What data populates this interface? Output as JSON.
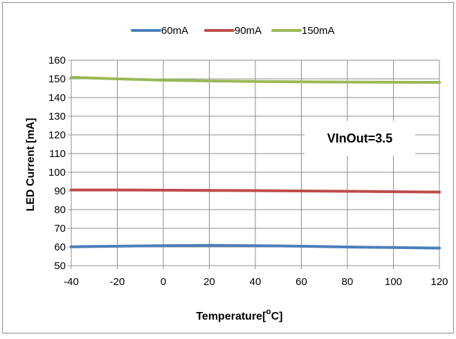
{
  "chart_data": {
    "type": "line",
    "xlabel_main": "Temperature[",
    "xlabel_sup": "o",
    "xlabel_end": "C]",
    "ylabel": "LED Current [mA]",
    "annotation": "VInOut=3.5",
    "xlim": [
      -40,
      120
    ],
    "ylim": [
      50,
      160
    ],
    "x_ticks": [
      -40,
      -20,
      0,
      20,
      40,
      60,
      80,
      100,
      120
    ],
    "y_ticks": [
      50,
      60,
      70,
      80,
      90,
      100,
      110,
      120,
      130,
      140,
      150,
      160
    ],
    "x_tick_labels": [
      "-40",
      "-20",
      "0",
      "20",
      "40",
      "60",
      "80",
      "100",
      "120"
    ],
    "y_tick_labels": [
      "50",
      "60",
      "70",
      "80",
      "90",
      "100",
      "110",
      "120",
      "130",
      "140",
      "150",
      "160"
    ],
    "grid": true,
    "legend_position": "top",
    "x": [
      -40,
      -20,
      0,
      20,
      40,
      60,
      80,
      100,
      120
    ],
    "series": [
      {
        "name": "60mA",
        "color": "#4a7ebb",
        "values": [
          60.1,
          60.4,
          60.7,
          60.9,
          60.7,
          60.4,
          60.0,
          59.7,
          59.4
        ]
      },
      {
        "name": "90mA",
        "color": "#be4b48",
        "values": [
          90.5,
          90.5,
          90.4,
          90.3,
          90.2,
          90.0,
          89.8,
          89.6,
          89.4
        ]
      },
      {
        "name": "150mA",
        "color": "#98b954",
        "values": [
          150.8,
          150.0,
          149.3,
          148.9,
          148.6,
          148.4,
          148.3,
          148.2,
          148.1
        ]
      }
    ]
  }
}
